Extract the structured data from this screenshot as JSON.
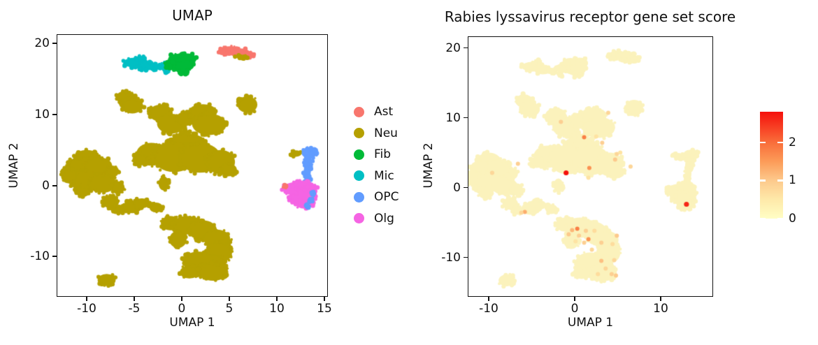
{
  "figure": {
    "background": "#ffffff"
  },
  "chart_data": [
    {
      "type": "scatter",
      "title": "UMAP",
      "xlabel": "UMAP 1",
      "ylabel": "UMAP 2",
      "xlim": [
        -13.16,
        15.37
      ],
      "ylim": [
        -15.67,
        21.3
      ],
      "xticks": [
        -10,
        -5,
        0,
        5,
        10,
        15
      ],
      "yticks": [
        -10,
        0,
        10,
        20
      ],
      "grid": false,
      "legend_position": "right-of-plot",
      "legend": [
        {
          "label": "Ast",
          "color": "#F8766D"
        },
        {
          "label": "Neu",
          "color": "#B5A000"
        },
        {
          "label": "Fib",
          "color": "#00BA38"
        },
        {
          "label": "Mic",
          "color": "#00BFC4"
        },
        {
          "label": "OPC",
          "color": "#619CFF"
        },
        {
          "label": "Olg",
          "color": "#F564E3"
        }
      ],
      "clusters": [
        {
          "name": "Neu",
          "color": "#B5A000",
          "blobs": [
            [
              -5.9,
              12.4,
              1.0,
              0.95
            ],
            [
              -5.2,
              11.2,
              1.15,
              1.05
            ],
            [
              6.9,
              11.4,
              1.05,
              1.15
            ],
            [
              -2.2,
              10.2,
              1.25,
              1.2
            ],
            [
              -1.1,
              8.7,
              1.5,
              1.4
            ],
            [
              0.4,
              9.4,
              1.0,
              1.0
            ],
            [
              2.2,
              10.3,
              1.5,
              1.15
            ],
            [
              2.9,
              8.6,
              1.8,
              1.5
            ],
            [
              0.3,
              7.0,
              0.7,
              0.9
            ],
            [
              0.6,
              5.9,
              2.0,
              1.4
            ],
            [
              -3.2,
              4.4,
              1.6,
              1.6
            ],
            [
              -4.4,
              3.6,
              0.8,
              0.8
            ],
            [
              -0.8,
              4.0,
              2.2,
              2.1
            ],
            [
              1.9,
              3.9,
              2.2,
              2.1
            ],
            [
              4.1,
              3.3,
              1.5,
              1.7
            ],
            [
              4.9,
              2.2,
              0.9,
              0.9
            ],
            [
              -1.9,
              0.3,
              0.55,
              1.0
            ],
            [
              -10.0,
              4.0,
              1.3,
              1.0
            ],
            [
              -10.9,
              2.6,
              1.3,
              1.3
            ],
            [
              -8.8,
              2.7,
              1.5,
              1.3
            ],
            [
              -10.2,
              0.7,
              1.6,
              1.5
            ],
            [
              -8.3,
              0.3,
              1.4,
              1.3
            ],
            [
              -11.9,
              1.4,
              0.8,
              1.1
            ],
            [
              -10.4,
              -0.8,
              0.8,
              0.8
            ],
            [
              -7.2,
              2.0,
              0.6,
              0.8
            ],
            [
              -6.7,
              -0.3,
              0.7,
              0.9
            ],
            [
              -7.5,
              -2.3,
              0.9,
              0.9
            ],
            [
              -6.6,
              -3.3,
              0.7,
              0.6
            ],
            [
              -5.2,
              -3.0,
              1.0,
              0.9
            ],
            [
              -4.2,
              -2.5,
              0.9,
              0.7
            ],
            [
              -2.7,
              -3.1,
              0.7,
              0.7
            ],
            [
              -1.2,
              -5.3,
              1.0,
              1.0
            ],
            [
              0.6,
              -5.6,
              1.6,
              1.3
            ],
            [
              2.2,
              -6.3,
              1.5,
              1.4
            ],
            [
              3.7,
              -7.5,
              1.4,
              1.3
            ],
            [
              3.9,
              -9.4,
              1.4,
              1.5
            ],
            [
              3.2,
              -11.0,
              1.3,
              1.3
            ],
            [
              1.8,
              -10.7,
              1.7,
              1.4
            ],
            [
              2.9,
              -12.0,
              1.4,
              1.1
            ],
            [
              3.3,
              -12.2,
              1.6,
              1.2
            ],
            [
              0.8,
              -12.2,
              1.0,
              0.9
            ],
            [
              -0.4,
              -7.6,
              0.9,
              1.2
            ],
            [
              -7.9,
              -13.3,
              0.95,
              0.85
            ],
            [
              12.0,
              4.5,
              0.6,
              0.45
            ]
          ]
        },
        {
          "name": "Mic",
          "color": "#00BFC4",
          "blobs": [
            [
              -4.9,
              17.3,
              1.25,
              0.7
            ],
            [
              -3.7,
              16.8,
              1.0,
              0.6
            ],
            [
              -2.8,
              16.7,
              0.6,
              0.45
            ],
            [
              -4.4,
              17.9,
              0.5,
              0.35
            ],
            [
              -1.9,
              17.1,
              0.22,
              0.22
            ],
            [
              -1.6,
              16.2,
              0.28,
              0.28
            ]
          ]
        },
        {
          "name": "Fib",
          "color": "#00BA38",
          "blobs": [
            [
              -0.5,
              17.7,
              0.95,
              0.85
            ],
            [
              0.6,
              17.8,
              0.95,
              0.8
            ],
            [
              0.1,
              16.9,
              1.2,
              0.85
            ],
            [
              -1.3,
              17.0,
              0.55,
              0.5
            ],
            [
              0.2,
              16.1,
              0.45,
              0.4
            ]
          ]
        },
        {
          "name": "Ast",
          "color": "#F8766D",
          "blobs": [
            [
              5.0,
              19.0,
              1.05,
              0.6
            ],
            [
              6.1,
              18.7,
              1.1,
              0.6
            ],
            [
              7.0,
              18.4,
              0.55,
              0.4
            ],
            [
              4.3,
              18.7,
              0.45,
              0.35
            ]
          ]
        },
        {
          "name": "Neu",
          "color": "#B5A000",
          "blobs": [
            [
              5.9,
              18.15,
              0.3,
              0.22
            ],
            [
              6.6,
              18.05,
              0.28,
              0.2
            ]
          ]
        },
        {
          "name": "OPC",
          "color": "#619CFF",
          "blobs": [
            [
              13.4,
              4.6,
              0.8,
              0.8
            ],
            [
              13.9,
              4.9,
              0.45,
              0.5
            ],
            [
              13.3,
              3.3,
              0.45,
              0.7
            ],
            [
              13.2,
              2.0,
              0.38,
              1.0
            ],
            [
              13.2,
              0.7,
              0.32,
              0.7
            ]
          ]
        },
        {
          "name": "Olg",
          "color": "#F564E3",
          "blobs": [
            [
              12.4,
              -0.4,
              1.75,
              0.95
            ],
            [
              12.8,
              0.2,
              0.8,
              0.5
            ],
            [
              12.7,
              -1.6,
              1.45,
              1.0
            ],
            [
              12.9,
              -2.6,
              0.9,
              0.65
            ],
            [
              11.4,
              -0.7,
              0.7,
              0.6
            ]
          ]
        },
        {
          "name": "OPC",
          "color": "#619CFF",
          "blobs": [
            [
              13.8,
              -1.2,
              0.14,
              0.3
            ],
            [
              13.6,
              -2.1,
              0.12,
              0.26
            ],
            [
              13.25,
              -2.9,
              0.15,
              0.14
            ]
          ]
        },
        {
          "name": "Ast",
          "color": "#F8766D",
          "blobs": [
            [
              10.85,
              -0.15,
              0.18,
              0.18
            ]
          ]
        }
      ]
    },
    {
      "type": "scatter",
      "title": "Rabies lyssavirus receptor gene set score",
      "xlabel": "UMAP 1",
      "ylabel": "UMAP 2",
      "xlim": [
        -12.44,
        16.1
      ],
      "ylim": [
        -15.65,
        21.65
      ],
      "xticks": [
        -10,
        0,
        10
      ],
      "yticks": [
        -10,
        0,
        10,
        20
      ],
      "grid": false,
      "base_color": "#FBF2BC",
      "score_points": [
        [
          -1.6,
          9.4,
          0.9
        ],
        [
          3.9,
          10.7,
          0.8
        ],
        [
          1.1,
          7.2,
          1.8
        ],
        [
          2.5,
          7.3,
          0.6
        ],
        [
          3.2,
          6.4,
          0.9
        ],
        [
          4.9,
          4.8,
          0.8
        ],
        [
          5.3,
          5.0,
          0.6
        ],
        [
          4.7,
          4.0,
          1.0
        ],
        [
          6.5,
          3.0,
          0.8
        ],
        [
          1.7,
          2.8,
          1.6
        ],
        [
          -1.0,
          2.1,
          2.8
        ],
        [
          1.6,
          1.4,
          0.6
        ],
        [
          -9.6,
          2.1,
          0.8
        ],
        [
          -6.6,
          3.4,
          0.9
        ],
        [
          -5.8,
          -3.5,
          1.3
        ],
        [
          -6.2,
          -3.6,
          0.8
        ],
        [
          13.0,
          -2.4,
          2.6
        ],
        [
          0.3,
          -5.9,
          1.8
        ],
        [
          -0.3,
          -6.1,
          1.2
        ],
        [
          1.3,
          -6.2,
          0.9
        ],
        [
          2.3,
          -6.2,
          0.7
        ],
        [
          0.5,
          -6.9,
          0.9
        ],
        [
          -0.7,
          -6.7,
          1.0
        ],
        [
          1.6,
          -7.4,
          1.6
        ],
        [
          0.1,
          -7.7,
          0.6
        ],
        [
          1.1,
          -7.9,
          0.9
        ],
        [
          3.1,
          -7.9,
          0.9
        ],
        [
          4.9,
          -6.9,
          1.0
        ],
        [
          4.4,
          -8.1,
          0.7
        ],
        [
          2.0,
          -8.9,
          0.8
        ],
        [
          3.1,
          -10.5,
          1.1
        ],
        [
          4.6,
          -10.4,
          0.8
        ],
        [
          3.6,
          -11.6,
          0.8
        ],
        [
          2.7,
          -12.4,
          0.7
        ],
        [
          4.3,
          -12.4,
          0.9
        ],
        [
          4.8,
          -12.6,
          1.0
        ]
      ],
      "colorbar": {
        "vmin": 0,
        "vmax": 2.8,
        "ticks": [
          0,
          1,
          2
        ],
        "stops": [
          [
            0,
            "#FFFEC5"
          ],
          [
            0.5,
            "#FEE9A9"
          ],
          [
            1,
            "#FDC98C"
          ],
          [
            1.5,
            "#FC9B58"
          ],
          [
            2,
            "#F96D3A"
          ],
          [
            2.8,
            "#F5100C"
          ]
        ]
      }
    }
  ]
}
